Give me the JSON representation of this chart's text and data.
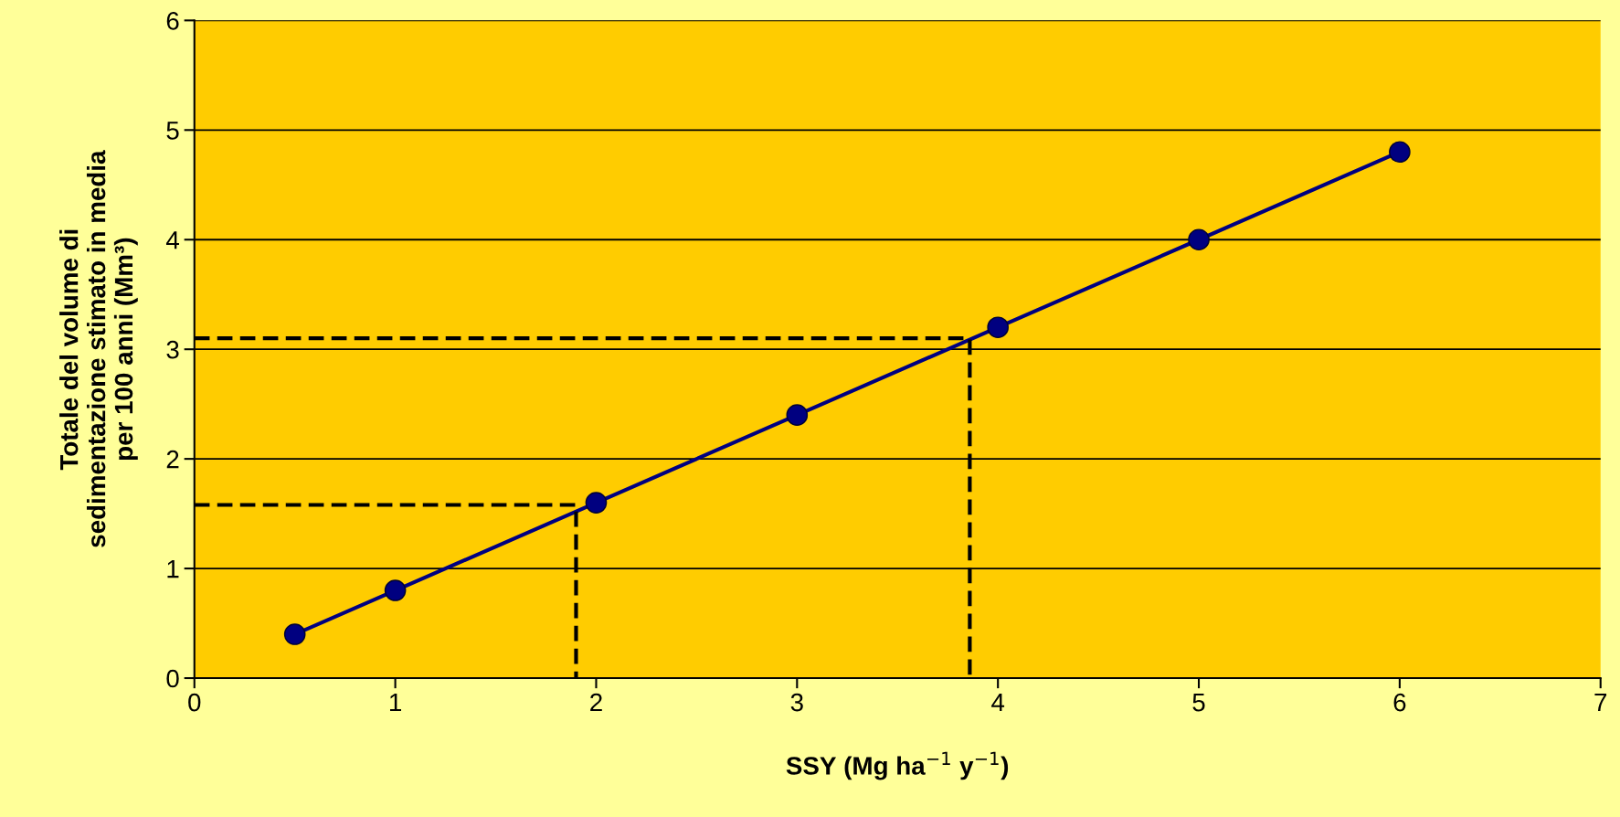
{
  "chart_data": {
    "type": "line",
    "xlabel": "SSY (Mg ha$^{−1}$ y$^{−1}$)",
    "ylabel": "Totale del volume di\nsedimentazione stimato in media\nper 100 anni (Mm³)",
    "xlim": [
      0,
      7
    ],
    "xticks": [
      0,
      1,
      2,
      3,
      4,
      5,
      6,
      7
    ],
    "ylim": [
      0,
      6
    ],
    "yticks": [
      0,
      1,
      2,
      3,
      4,
      5,
      6
    ],
    "grid": "y",
    "legend": false,
    "series": [
      {
        "color": "#000080",
        "marker": "circle",
        "line_style": "solid",
        "x": [
          0.5,
          1,
          2,
          3,
          4,
          5,
          6
        ],
        "values": [
          0.4,
          0.8,
          1.6,
          2.4,
          3.2,
          4.0,
          4.8
        ]
      },
      {
        "type": "line",
        "color": "#000000",
        "marker": "none",
        "line_style": "dashed",
        "x": [
          0,
          1.9,
          1.9
        ],
        "values": [
          1.58,
          1.58,
          0
        ]
      },
      {
        "type": "line",
        "color": "#000000",
        "marker": "none",
        "line_style": "dashed",
        "x": [
          0,
          3.86,
          3.86
        ],
        "values": [
          3.1,
          3.1,
          0
        ]
      }
    ]
  }
}
